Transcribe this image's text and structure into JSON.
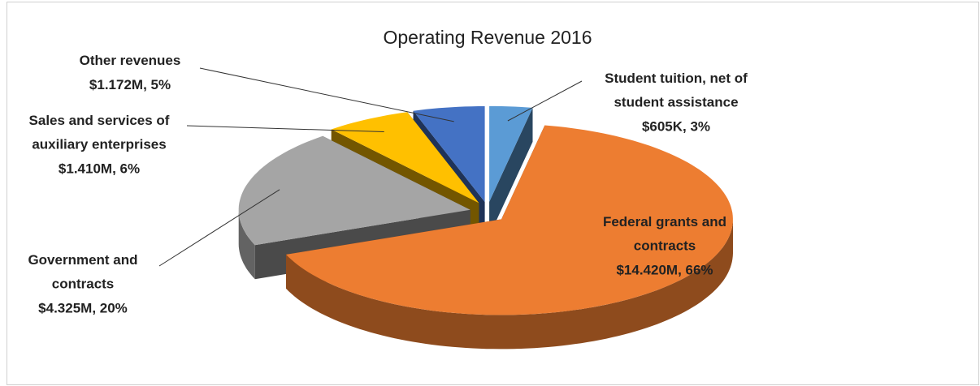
{
  "chart_data": {
    "type": "pie3d",
    "title": "Operating Revenue 2016",
    "categories": [
      "Student tuition, net of student assistance",
      "Federal grants and contracts",
      "Government and contracts",
      "Sales and services of auxiliary enterprises",
      "Other revenues"
    ],
    "values": [
      3,
      66,
      20,
      6,
      5
    ],
    "value_labels": [
      "$605K, 3%",
      "$14.420M, 66%",
      "$4.325M, 20%",
      "$1.410M, 6%",
      "$1.172M, 5%"
    ],
    "colors": [
      "#5b9bd5",
      "#ed7d31",
      "#a5a5a5",
      "#ffc000",
      "#4472c4"
    ]
  }
}
